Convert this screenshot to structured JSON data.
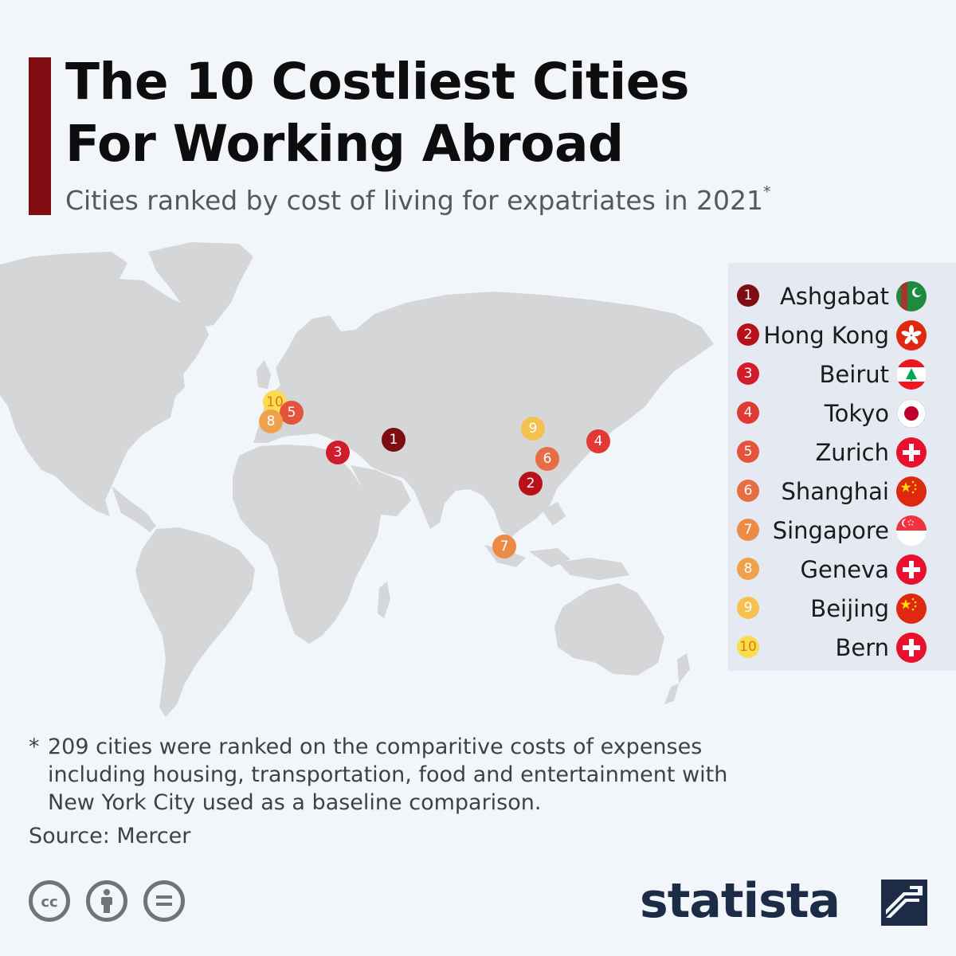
{
  "header": {
    "title_line1": "The 10 Costliest Cities",
    "title_line2": "For Working Abroad",
    "subtitle": "Cities ranked by cost of living for expatriates in 2021",
    "subtitle_mark": "*"
  },
  "colors": {
    "accent_bar": "#7f0d12",
    "land": "#d5d6d8",
    "background": "#f2f5f9",
    "legend_background": "#e5e9f1",
    "logo": "#1c2b46"
  },
  "cities": [
    {
      "rank": "1",
      "name": "Ashgabat",
      "color": "#7d0d12",
      "flag": "turkmenistan-flag-icon",
      "rank_label_style": "dark"
    },
    {
      "rank": "2",
      "name": "Hong Kong",
      "color": "#b8111a",
      "flag": "hong-kong-flag-icon",
      "rank_label_style": "dark"
    },
    {
      "rank": "3",
      "name": "Beirut",
      "color": "#d21b2b",
      "flag": "lebanon-flag-icon",
      "rank_label_style": "dark"
    },
    {
      "rank": "4",
      "name": "Tokyo",
      "color": "#e13a35",
      "flag": "japan-flag-icon",
      "rank_label_style": "dark"
    },
    {
      "rank": "5",
      "name": "Zurich",
      "color": "#e2543c",
      "flag": "switzerland-flag-icon",
      "rank_label_style": "dark"
    },
    {
      "rank": "6",
      "name": "Shanghai",
      "color": "#e86c44",
      "flag": "china-flag-icon",
      "rank_label_style": "dark"
    },
    {
      "rank": "7",
      "name": "Singapore",
      "color": "#ec8b46",
      "flag": "singapore-flag-icon",
      "rank_label_style": "dark"
    },
    {
      "rank": "8",
      "name": "Geneva",
      "color": "#efa24b",
      "flag": "switzerland-flag-icon",
      "rank_label_style": "dark"
    },
    {
      "rank": "9",
      "name": "Beijing",
      "color": "#f5c14f",
      "flag": "china-flag-icon",
      "rank_label_style": "dark"
    },
    {
      "rank": "10",
      "name": "Bern",
      "color": "#fadc4e",
      "flag": "switzerland-flag-icon",
      "rank_label_style": "light"
    }
  ],
  "footnote": {
    "mark": "*",
    "text": "209 cities were ranked on the comparitive costs of expenses including housing, transportation, food and entertainment with New York City used as a baseline comparison."
  },
  "source": "Source: Mercer",
  "license_icons": [
    "cc-icon",
    "attribution-icon",
    "no-derivatives-icon"
  ],
  "logo": {
    "name": "statista",
    "icon": "statista-logo-icon"
  }
}
